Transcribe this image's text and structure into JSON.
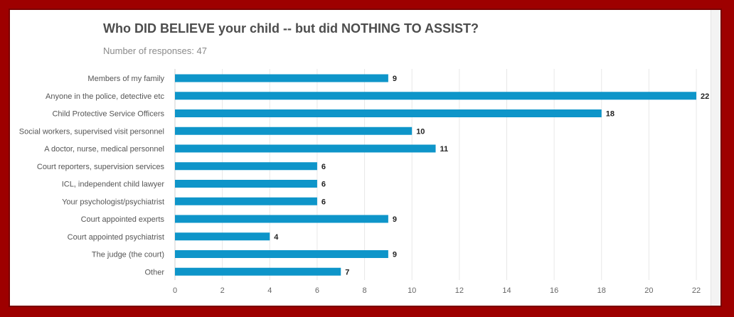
{
  "header": {
    "title": "Who DID BELIEVE your child -- but did NOTHING TO ASSIST?",
    "subtitle": "Number of responses: 47"
  },
  "colors": {
    "bar": "#0e95c9",
    "frame": "#9e0000",
    "grid": "#e8e8e8"
  },
  "chart_data": {
    "type": "bar",
    "orientation": "horizontal",
    "title": "Who DID BELIEVE your child -- but did NOTHING TO ASSIST?",
    "subtitle": "Number of responses: 47",
    "categories": [
      "Members of my family",
      "Anyone in the police, detective etc",
      "Child Protective Service Officers",
      "Social workers, supervised visit personnel",
      "A doctor, nurse, medical personnel",
      "Court reporters, supervision services",
      "ICL, independent child lawyer",
      "Your psychologist/psychiatrist",
      "Court appointed experts",
      "Court appointed psychiatrist",
      "The judge (the court)",
      "Other"
    ],
    "values": [
      9,
      22,
      18,
      10,
      11,
      6,
      6,
      6,
      9,
      4,
      9,
      7
    ],
    "xticks": [
      0,
      2,
      4,
      6,
      8,
      10,
      12,
      14,
      16,
      18,
      20,
      22
    ],
    "xlim": [
      0,
      23
    ],
    "grid": true,
    "legend": "none"
  }
}
